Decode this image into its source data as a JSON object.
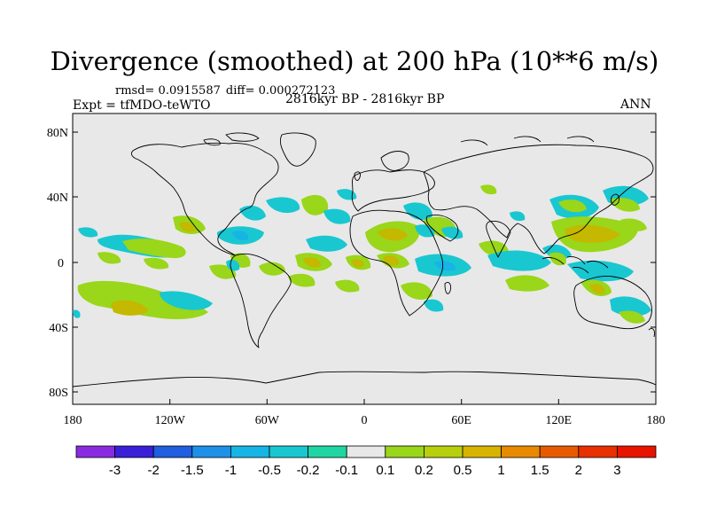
{
  "plot": {
    "title": "Divergence (smoothed) at 200 hPa (10**6 m/s)",
    "rmsd": "rmsd= 0.0915587",
    "diff": "diff= 0.000272123",
    "experiment": "Expt = tfMDO-teWTO",
    "period": "2816kyr BP - 2816kyr BP",
    "season": "ANN"
  },
  "axes": {
    "lat_labels": [
      "80N",
      "40N",
      "0",
      "40S",
      "80S"
    ],
    "lon_labels": [
      "180",
      "120W",
      "60W",
      "0",
      "60E",
      "120E",
      "180"
    ]
  },
  "colorbar": {
    "labels": [
      "-3",
      "-2",
      "-1.5",
      "-1",
      "-0.5",
      "-0.2",
      "-0.1",
      "0.1",
      "0.2",
      "0.5",
      "1",
      "1.5",
      "2",
      "3"
    ],
    "colors": [
      "#8a2be2",
      "#3a1fd9",
      "#1f5fe0",
      "#1e90e8",
      "#17b4e6",
      "#19c7d1",
      "#1fd6a2",
      "#e8e8e8",
      "#9ad619",
      "#b8cf0d",
      "#d6b400",
      "#e88a00",
      "#e85a00",
      "#e83000",
      "#e81400"
    ]
  },
  "colors": {
    "ocean_land": "#e8e8e8",
    "coast": "#000000"
  }
}
